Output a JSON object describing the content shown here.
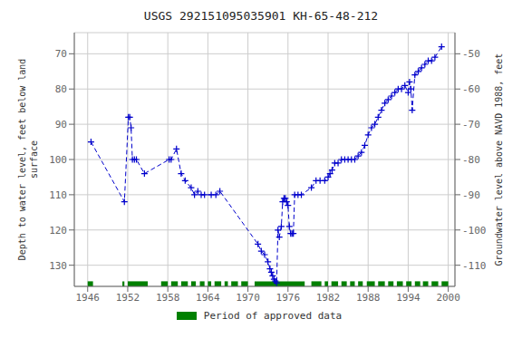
{
  "chart_data": {
    "type": "line",
    "title": "USGS 292151095035901 KH-65-48-212",
    "y_label": "Depth to water level, feet below land\nsurface",
    "y2_label": "Groundwater level above NAVD 1988, feet",
    "x": [
      1946.5,
      1951.5,
      1952.1,
      1952.3,
      1952.5,
      1952.7,
      1953.0,
      1953.3,
      1954.5,
      1958.2,
      1958.5,
      1959.3,
      1960.0,
      1960.6,
      1961.5,
      1962.0,
      1962.5,
      1963.0,
      1963.5,
      1964.5,
      1965.2,
      1965.8,
      1971.5,
      1972.0,
      1972.5,
      1973.0,
      1973.3,
      1973.5,
      1973.7,
      1973.9,
      1974.1,
      1974.3,
      1974.5,
      1974.7,
      1975.0,
      1975.2,
      1975.4,
      1975.6,
      1975.8,
      1976.0,
      1976.2,
      1976.4,
      1976.6,
      1976.8,
      1977.0,
      1977.5,
      1978.0,
      1979.5,
      1980.2,
      1980.8,
      1981.5,
      1982.0,
      1982.3,
      1982.6,
      1983.0,
      1983.5,
      1984.0,
      1984.5,
      1985.0,
      1985.5,
      1986.0,
      1986.5,
      1987.0,
      1987.5,
      1988.0,
      1988.5,
      1989.0,
      1989.5,
      1990.0,
      1990.5,
      1991.0,
      1991.5,
      1992.0,
      1992.5,
      1993.0,
      1993.5,
      1994.0,
      1994.2,
      1994.4,
      1994.6,
      1995.0,
      1995.5,
      1996.0,
      1996.5,
      1997.0,
      1997.5,
      1998.0,
      1999.0
    ],
    "values": [
      95,
      112,
      88,
      88,
      91,
      100,
      100,
      100,
      104,
      100,
      100,
      97,
      104,
      106,
      108,
      110,
      109,
      110,
      110,
      110,
      110,
      109,
      124,
      126,
      127,
      129,
      131,
      132,
      133,
      134,
      134.5,
      135,
      120,
      122,
      119,
      112,
      111,
      111,
      112,
      113,
      119,
      121,
      121,
      121,
      110,
      110,
      110,
      108,
      106,
      106,
      106,
      105,
      104,
      103,
      101,
      101,
      100,
      100,
      100,
      100,
      100,
      99,
      98,
      96,
      93,
      91,
      90,
      88,
      86,
      84,
      83,
      82,
      81,
      80,
      80,
      79,
      81,
      78,
      80,
      86,
      76,
      75,
      74,
      73,
      72,
      72,
      71,
      68
    ],
    "color": "#0000cc",
    "line_style": "dashed",
    "marker": "plus",
    "xlim": [
      1944,
      2001
    ],
    "xticks": [
      1946,
      1952,
      1958,
      1964,
      1970,
      1976,
      1982,
      1988,
      1994,
      2000
    ],
    "ylim": [
      136,
      64
    ],
    "yticks": [
      70,
      80,
      90,
      100,
      110,
      120,
      130
    ],
    "y2lim": [
      -116,
      -44
    ],
    "y2ticks": [
      -50,
      -60,
      -70,
      -80,
      -90,
      -100,
      -110
    ],
    "grid": true,
    "legend": "bottom",
    "approved_periods": {
      "name": "Period of approved data",
      "color": "#008000",
      "ranges": [
        [
          1946.0,
          1946.8
        ],
        [
          1951.2,
          1951.5
        ],
        [
          1952.0,
          1955.0
        ],
        [
          1957.0,
          1958.0
        ],
        [
          1958.5,
          1959.5
        ],
        [
          1960.0,
          1961.0
        ],
        [
          1961.5,
          1962.2
        ],
        [
          1962.8,
          1963.5
        ],
        [
          1964.0,
          1964.5
        ],
        [
          1965.0,
          1966.0
        ],
        [
          1966.5,
          1967.0
        ],
        [
          1967.5,
          1968.5
        ],
        [
          1969.0,
          1970.0
        ],
        [
          1971.0,
          1978.5
        ],
        [
          1979.5,
          1981.0
        ],
        [
          1981.5,
          1982.0
        ],
        [
          1982.5,
          1983.5
        ],
        [
          1984.0,
          1984.8
        ],
        [
          1985.3,
          1986.0
        ],
        [
          1986.5,
          1987.2
        ],
        [
          1987.8,
          1989.0
        ],
        [
          1989.5,
          1990.5
        ],
        [
          1991.0,
          1991.8
        ],
        [
          1992.3,
          1993.2
        ],
        [
          1993.7,
          1994.5
        ],
        [
          1995.0,
          1995.8
        ],
        [
          1996.2,
          1997.0
        ],
        [
          1997.5,
          1998.5
        ],
        [
          1999.0,
          2000.0
        ]
      ]
    }
  }
}
